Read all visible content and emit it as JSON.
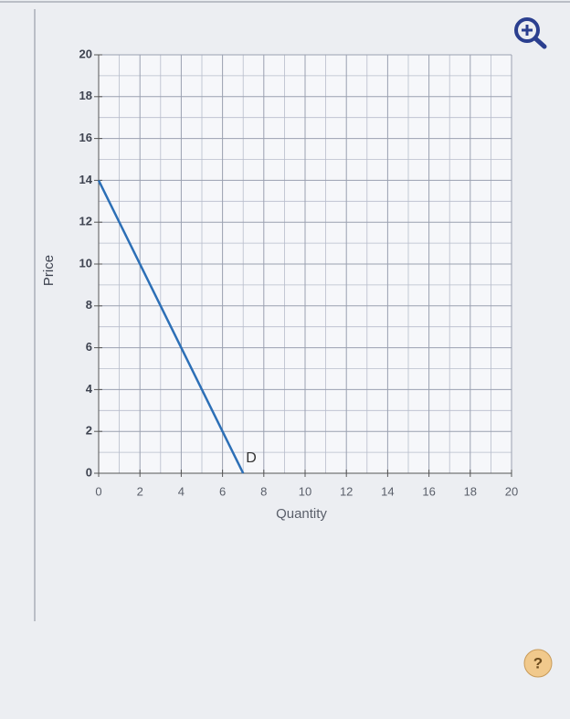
{
  "chart_data": {
    "type": "line",
    "x_label": "Quantity",
    "y_label": "Price",
    "series": [
      {
        "name": "D",
        "color": "#2c6fb6",
        "x": [
          0,
          7
        ],
        "values": [
          14,
          0
        ]
      }
    ],
    "xlim": [
      0,
      20
    ],
    "ylim": [
      0,
      20
    ],
    "xticks": [
      0,
      2,
      4,
      6,
      8,
      10,
      12,
      14,
      16,
      18,
      20
    ],
    "yticks": [
      0,
      2,
      4,
      6,
      8,
      10,
      12,
      14,
      16,
      18,
      20
    ],
    "grid": true,
    "minor_grid": true
  },
  "help_button": "?"
}
